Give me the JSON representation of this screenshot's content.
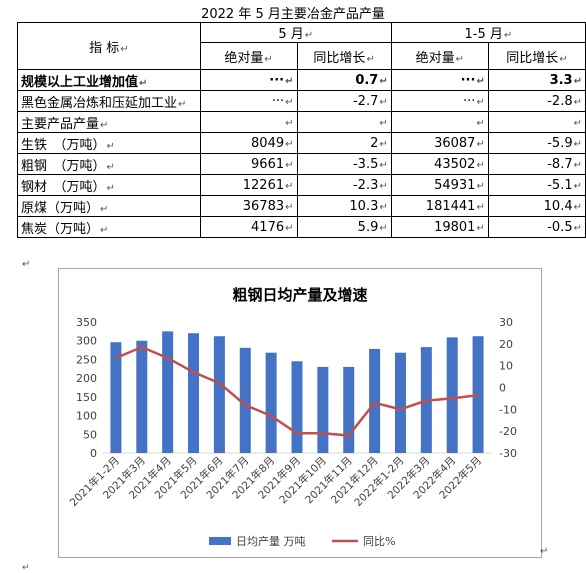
{
  "table": {
    "title": "2022 年 5 月主要冶金产品产量",
    "header": {
      "indicator": "指 标",
      "period_may": "5 月",
      "period_jan_may": "1-5 月",
      "absolute": "绝对量",
      "yoy": "同比增长"
    },
    "rows": [
      {
        "name": "规模以上工业增加值",
        "may_abs": "···",
        "may_yoy": "0.7",
        "ytd_abs": "···",
        "ytd_yoy": "3.3",
        "bold": true
      },
      {
        "name": "黑色金属冶炼和压延加工业",
        "may_abs": "···",
        "may_yoy": "-2.7",
        "ytd_abs": "···",
        "ytd_yoy": "-2.8",
        "bold": false
      },
      {
        "name": "主要产品产量",
        "may_abs": "",
        "may_yoy": "",
        "ytd_abs": "",
        "ytd_yoy": "",
        "bold": false
      },
      {
        "name": "生铁　（万吨）",
        "may_abs": "8049",
        "may_yoy": "2",
        "ytd_abs": "36087",
        "ytd_yoy": "-5.9",
        "bold": false
      },
      {
        "name": "粗钢　（万吨）",
        "may_abs": "9661",
        "may_yoy": "-3.5",
        "ytd_abs": "43502",
        "ytd_yoy": "-8.7",
        "bold": false
      },
      {
        "name": "钢材　（万吨）",
        "may_abs": "12261",
        "may_yoy": "-2.3",
        "ytd_abs": "54931",
        "ytd_yoy": "-5.1",
        "bold": false
      },
      {
        "name": "原煤（万吨）",
        "may_abs": "36783",
        "may_yoy": "10.3",
        "ytd_abs": "181441",
        "ytd_yoy": "10.4",
        "bold": false
      },
      {
        "name": "焦炭（万吨）",
        "may_abs": "4176",
        "may_yoy": "5.9",
        "ytd_abs": "19801",
        "ytd_yoy": "-0.5",
        "bold": false
      }
    ]
  },
  "marks": {
    "para": "↵"
  },
  "chart_data": {
    "type": "bar",
    "title": "粗钢日均产量及增速",
    "categories": [
      "2021年1-2月",
      "2021年3月",
      "2021年4月",
      "2021年5月",
      "2021年6月",
      "2021年7月",
      "2021年8月",
      "2021年9月",
      "2021年10月",
      "2021年11月",
      "2021年12月",
      "2022年1-2月",
      "2022年3月",
      "2022年4月",
      "2022年5月"
    ],
    "series": [
      {
        "name": "日均产量 万吨",
        "type": "bar",
        "axis": "left",
        "color": "#4472c4",
        "values": [
          296,
          300,
          325,
          320,
          312,
          281,
          268,
          245,
          230,
          230,
          278,
          268,
          283,
          309,
          312
        ]
      },
      {
        "name": "同比%",
        "type": "line",
        "axis": "right",
        "color": "#c0504d",
        "values": [
          13.5,
          18.5,
          13.5,
          7,
          2,
          -8,
          -13,
          -21,
          -21,
          -22,
          -7,
          -10,
          -6,
          -5,
          -3.5
        ]
      }
    ],
    "ylim_left": [
      0,
      350
    ],
    "yticks_left": [
      0,
      50,
      100,
      150,
      200,
      250,
      300,
      350
    ],
    "ylim_right": [
      -30,
      30
    ],
    "yticks_right": [
      -30,
      -20,
      -10,
      0,
      10,
      20,
      30
    ],
    "grid": false,
    "legend_position": "bottom"
  }
}
